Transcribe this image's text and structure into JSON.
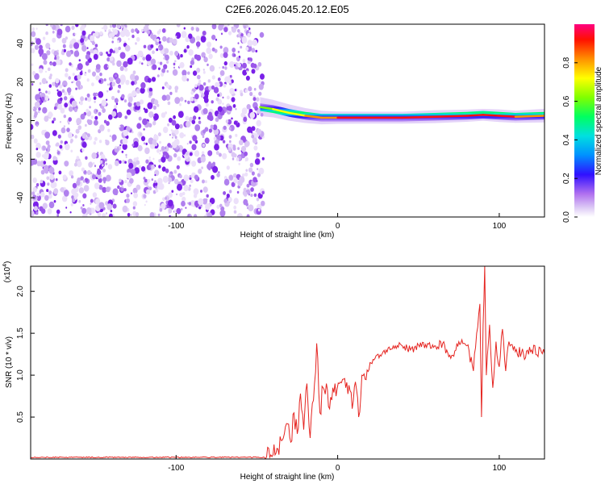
{
  "title": "C2E6.2026.045.20.12.E05",
  "chart_data": [
    {
      "type": "heatmap",
      "xlabel": "Height of straight line (km)",
      "ylabel": "Frequency (Hz)",
      "xlim": [
        -190,
        128
      ],
      "ylim": [
        -50,
        50
      ],
      "x_ticks": [
        {
          "value": -100,
          "label": "-100"
        },
        {
          "value": 0,
          "label": "0"
        },
        {
          "value": 100,
          "label": "100"
        }
      ],
      "y_ticks": [
        {
          "value": -40,
          "label": "-40"
        },
        {
          "value": -20,
          "label": "-20"
        },
        {
          "value": 0,
          "label": "0"
        },
        {
          "value": 20,
          "label": "20"
        },
        {
          "value": 40,
          "label": "40"
        }
      ],
      "noise_region": [
        -190,
        -48
      ],
      "ridge": [
        {
          "x": -48,
          "freq": 7,
          "amp": 0.45
        },
        {
          "x": -40,
          "freq": 6,
          "amp": 0.55
        },
        {
          "x": -30,
          "freq": 4,
          "amp": 0.65
        },
        {
          "x": -20,
          "freq": 2.5,
          "amp": 0.75
        },
        {
          "x": -10,
          "freq": 1.5,
          "amp": 0.85
        },
        {
          "x": 0,
          "freq": 1.5,
          "amp": 0.95
        },
        {
          "x": 20,
          "freq": 1.5,
          "amp": 0.98
        },
        {
          "x": 40,
          "freq": 1.5,
          "amp": 0.98
        },
        {
          "x": 60,
          "freq": 2,
          "amp": 0.9
        },
        {
          "x": 80,
          "freq": 2.5,
          "amp": 0.95
        },
        {
          "x": 90,
          "freq": 3,
          "amp": 0.98
        },
        {
          "x": 100,
          "freq": 2.5,
          "amp": 0.92
        },
        {
          "x": 110,
          "freq": 2,
          "amp": 0.95
        },
        {
          "x": 128,
          "freq": 2.5,
          "amp": 0.85
        }
      ],
      "colorbar": {
        "label": "Normalized spectral amplitude",
        "range": [
          0,
          1
        ],
        "ticks": [
          {
            "value": 0.0,
            "label": "0.0"
          },
          {
            "value": 0.2,
            "label": "0.2"
          },
          {
            "value": 0.4,
            "label": "0.4"
          },
          {
            "value": 0.6,
            "label": "0.6"
          },
          {
            "value": 0.8,
            "label": "0.8"
          }
        ]
      }
    },
    {
      "type": "line",
      "xlabel": "Height of straight line (km)",
      "ylabel": "SNR (10 * v/v)",
      "y_multiplier": "(x10",
      "y_multiplier_exp": "4",
      "xlim": [
        -190,
        128
      ],
      "ylim": [
        0,
        2.3
      ],
      "x_ticks": [
        {
          "value": -100,
          "label": "-100"
        },
        {
          "value": 0,
          "label": "0"
        },
        {
          "value": 100,
          "label": "100"
        }
      ],
      "y_ticks": [
        {
          "value": 0.5,
          "label": "0.5"
        },
        {
          "value": 1.0,
          "label": "1.0"
        },
        {
          "value": 1.5,
          "label": "1.5"
        },
        {
          "value": 2.0,
          "label": "2.0"
        }
      ],
      "color": "#e52420",
      "series": [
        {
          "x": [
            -190,
            -120,
            -60,
            -42,
            -40,
            -37,
            -35,
            -33,
            -31,
            -29,
            -27,
            -25,
            -23,
            -21,
            -19,
            -17,
            -15,
            -13,
            -11,
            -9,
            -7,
            -5,
            -3,
            -1,
            1,
            3,
            5,
            7,
            9,
            11,
            13,
            15,
            17,
            20,
            25,
            30,
            35,
            40,
            45,
            50,
            55,
            60,
            65,
            70,
            75,
            80,
            84,
            86,
            88,
            89,
            90,
            91,
            92,
            94,
            96,
            98,
            100,
            102,
            104,
            106,
            110,
            115,
            120,
            128
          ],
          "values": [
            0.02,
            0.02,
            0.02,
            0.02,
            0.05,
            0.12,
            0.22,
            0.3,
            0.42,
            0.2,
            0.55,
            0.3,
            0.78,
            0.35,
            0.9,
            0.25,
            0.7,
            1.38,
            0.55,
            0.85,
            0.9,
            0.6,
            0.85,
            0.75,
            0.9,
            0.95,
            0.85,
            0.88,
            0.6,
            0.92,
            0.5,
            1.0,
            0.95,
            1.15,
            1.25,
            1.3,
            1.32,
            1.35,
            1.3,
            1.36,
            1.33,
            1.35,
            1.38,
            1.2,
            1.4,
            1.35,
            1.05,
            1.5,
            1.85,
            0.5,
            1.6,
            2.3,
            1.0,
            1.6,
            0.85,
            1.4,
            1.1,
            1.55,
            1.05,
            1.4,
            1.28,
            1.25,
            1.3,
            1.26
          ]
        }
      ]
    }
  ]
}
